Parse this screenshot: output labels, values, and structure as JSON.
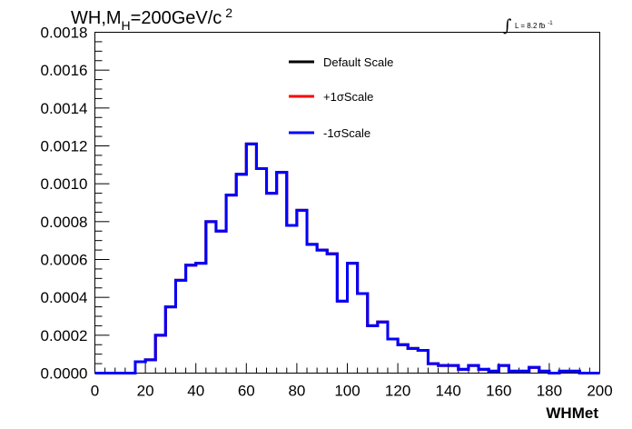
{
  "chart_data": {
    "type": "line",
    "step": true,
    "title": {
      "main": "WH,M",
      "subscript": "H",
      "rest": "=200GeV/c",
      "superscript": "2"
    },
    "lumi": {
      "integral": "∫",
      "label": "L = 8.2 fb",
      "superscript": "-1"
    },
    "xlabel": "WHMet",
    "ylabel": "",
    "xlim": [
      0,
      200
    ],
    "ylim": [
      0,
      0.0018
    ],
    "bin_width": 4,
    "x_ticks": [
      "0",
      "20",
      "40",
      "60",
      "80",
      "100",
      "120",
      "140",
      "160",
      "180",
      "200"
    ],
    "y_ticks": [
      "0.0000",
      "0.0002",
      "0.0004",
      "0.0006",
      "0.0008",
      "0.0010",
      "0.0012",
      "0.0014",
      "0.0016",
      "0.0018"
    ],
    "x_tick_values": [
      0,
      20,
      40,
      60,
      80,
      100,
      120,
      140,
      160,
      180,
      200
    ],
    "y_tick_values": [
      0,
      0.0002,
      0.0004,
      0.0006,
      0.0008,
      0.001,
      0.0012,
      0.0014,
      0.0016,
      0.0018
    ],
    "legend_position": "top-center",
    "series": [
      {
        "name": "Default Scale",
        "color": "#000000",
        "values": [
          0,
          0,
          0,
          0,
          6e-05,
          7e-05,
          0.0002,
          0.00035,
          0.00049,
          0.00057,
          0.00058,
          0.0008,
          0.00075,
          0.00094,
          0.00105,
          0.00121,
          0.00108,
          0.00095,
          0.00106,
          0.00078,
          0.00086,
          0.00068,
          0.00065,
          0.00063,
          0.00038,
          0.00058,
          0.00042,
          0.00025,
          0.00027,
          0.00018,
          0.00015,
          0.00013,
          0.00012,
          5e-05,
          4e-05,
          4e-05,
          2e-05,
          4e-05,
          2e-05,
          1e-05,
          4e-05,
          1e-05,
          1e-05,
          3e-05,
          1e-05,
          0.0,
          1e-05,
          1e-05,
          0.0,
          0.0
        ]
      },
      {
        "name": "+1σScale",
        "color": "#ff0000",
        "values": [
          0,
          0,
          0,
          0,
          6e-05,
          7e-05,
          0.0002,
          0.00035,
          0.00049,
          0.00057,
          0.00058,
          0.0008,
          0.00075,
          0.00094,
          0.00105,
          0.00121,
          0.00108,
          0.00095,
          0.00106,
          0.00078,
          0.00086,
          0.00068,
          0.00065,
          0.00063,
          0.00038,
          0.00058,
          0.00042,
          0.00025,
          0.00027,
          0.00018,
          0.00015,
          0.00013,
          0.00012,
          5e-05,
          4e-05,
          4e-05,
          2e-05,
          4e-05,
          2e-05,
          1e-05,
          4e-05,
          1e-05,
          1e-05,
          3e-05,
          1e-05,
          0.0,
          1e-05,
          1e-05,
          0.0,
          0.0
        ]
      },
      {
        "name": "-1σScale",
        "color": "#0000ff",
        "values": [
          0,
          0,
          0,
          0,
          6e-05,
          7e-05,
          0.0002,
          0.00035,
          0.00049,
          0.00057,
          0.00058,
          0.0008,
          0.00075,
          0.00094,
          0.00105,
          0.00121,
          0.00108,
          0.00095,
          0.00106,
          0.00078,
          0.00086,
          0.00068,
          0.00065,
          0.00063,
          0.00038,
          0.00058,
          0.00042,
          0.00025,
          0.00027,
          0.00018,
          0.00015,
          0.00013,
          0.00012,
          5e-05,
          4e-05,
          4e-05,
          2e-05,
          4e-05,
          2e-05,
          1e-05,
          4e-05,
          1e-05,
          1e-05,
          3e-05,
          1e-05,
          0.0,
          1e-05,
          1e-05,
          0.0,
          0.0
        ]
      }
    ]
  }
}
